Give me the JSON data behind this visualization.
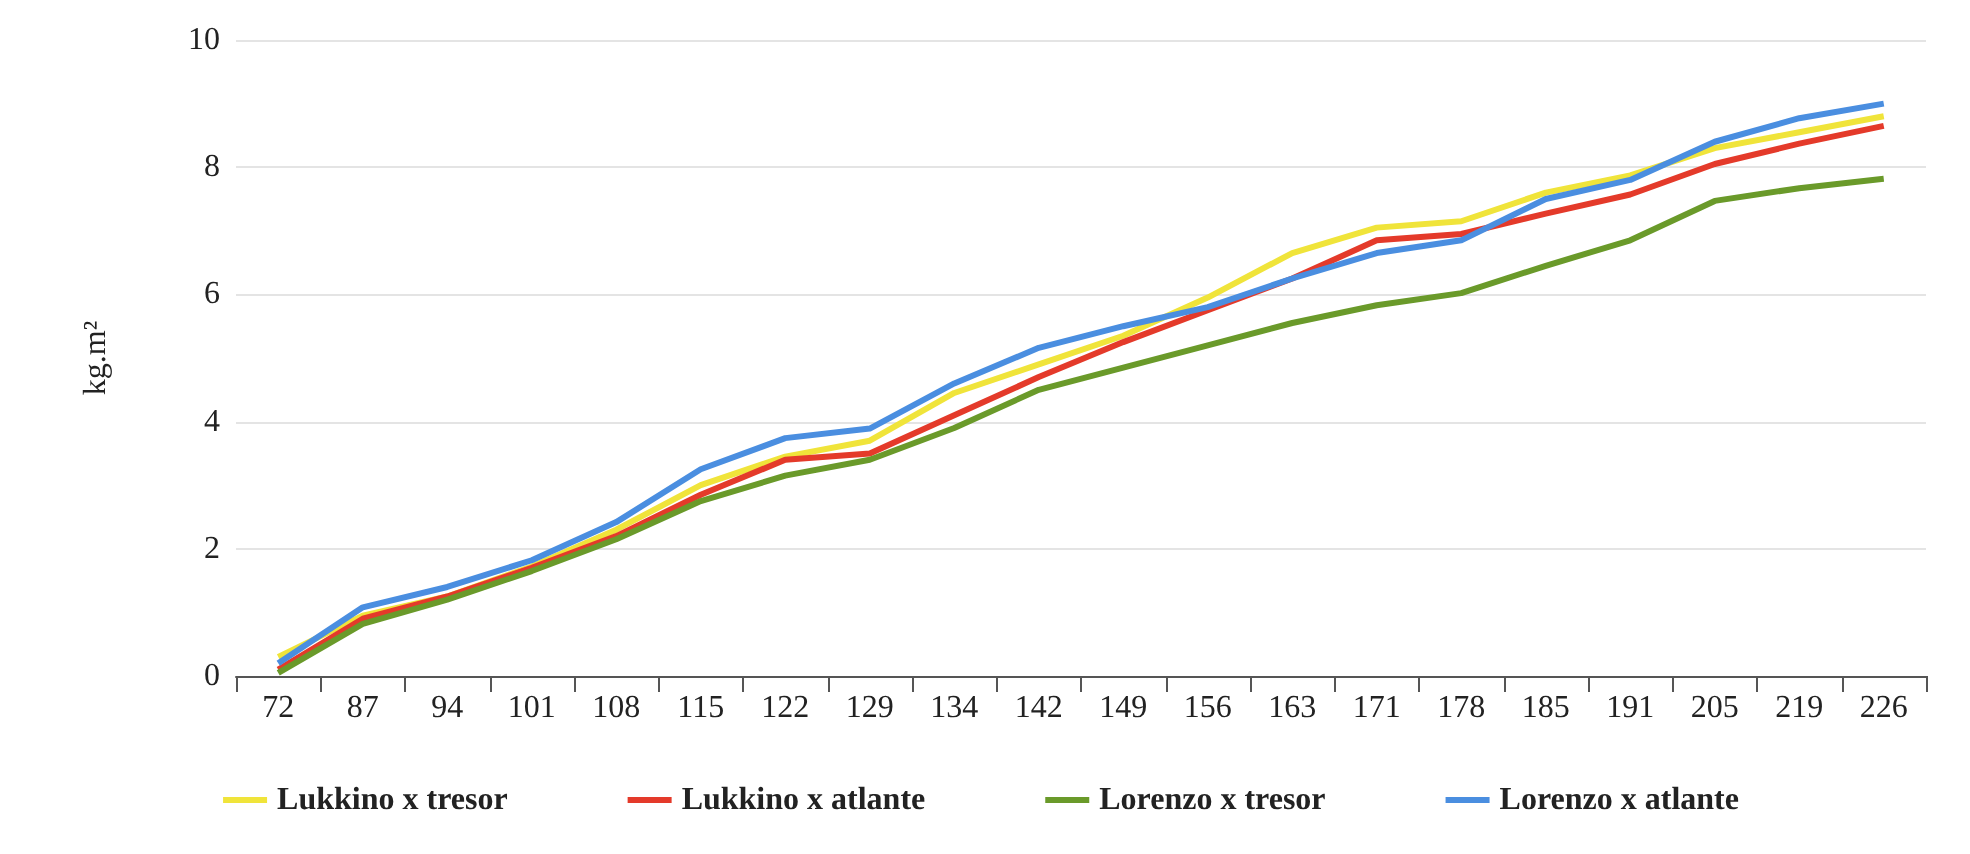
{
  "chart_data": {
    "type": "line",
    "ylabel": "kg.m²",
    "categories": [
      "72",
      "87",
      "94",
      "101",
      "108",
      "115",
      "122",
      "129",
      "134",
      "142",
      "149",
      "156",
      "163",
      "171",
      "178",
      "185",
      "191",
      "205",
      "219",
      "226"
    ],
    "series": [
      {
        "name": "Lukkino x tresor",
        "color": "#f0e43a",
        "values": [
          0.3,
          0.95,
          1.25,
          1.72,
          2.3,
          3.0,
          3.45,
          3.7,
          4.45,
          4.9,
          5.35,
          5.95,
          6.65,
          7.05,
          7.15,
          7.6,
          7.87,
          8.3,
          8.55,
          8.8
        ]
      },
      {
        "name": "Lukkino x atlante",
        "color": "#e43a2a",
        "values": [
          0.1,
          0.9,
          1.25,
          1.7,
          2.2,
          2.85,
          3.4,
          3.5,
          4.1,
          4.7,
          5.25,
          5.75,
          6.25,
          6.85,
          6.95,
          7.27,
          7.57,
          8.05,
          8.37,
          8.65
        ]
      },
      {
        "name": "Lorenzo x tresor",
        "color": "#6a9a2a",
        "values": [
          0.05,
          0.82,
          1.2,
          1.65,
          2.15,
          2.75,
          3.15,
          3.4,
          3.9,
          4.5,
          4.85,
          5.2,
          5.55,
          5.83,
          6.02,
          6.45,
          6.85,
          7.47,
          7.67,
          7.82
        ]
      },
      {
        "name": "Lorenzo x atlante",
        "color": "#4a8ee0",
        "values": [
          0.2,
          1.08,
          1.4,
          1.82,
          2.42,
          3.25,
          3.74,
          3.89,
          4.6,
          5.16,
          5.5,
          5.8,
          6.25,
          6.65,
          6.85,
          7.5,
          7.8,
          8.4,
          8.77,
          9.0
        ]
      }
    ],
    "ylim": [
      0,
      10
    ],
    "yticks": [
      0,
      2,
      4,
      6,
      8,
      10
    ],
    "grid": "y",
    "legend": "bottom",
    "marker": "none",
    "line_style": "solid"
  }
}
